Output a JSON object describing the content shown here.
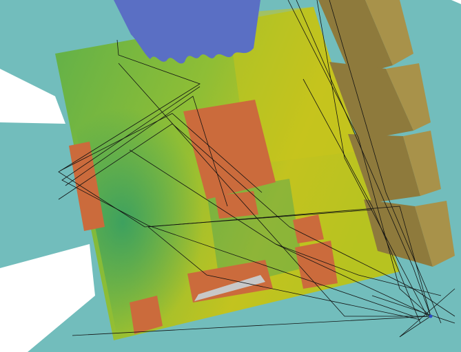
{
  "viewport": {
    "background_color": "#ffffff",
    "floor_color": "#72bdbc"
  },
  "scene": {
    "board_colors": [
      "#2a9a68",
      "#5fb04a",
      "#8fbe35",
      "#b7c320",
      "#c9c51c"
    ],
    "copper_color": "#cb6b3c",
    "cable_color": "#5a6fc4",
    "heatsink_color": "#a8924a",
    "connector_color": "#c8c8c8",
    "ray_color": "#111111",
    "source_marker_color": "#2a4cc4"
  }
}
